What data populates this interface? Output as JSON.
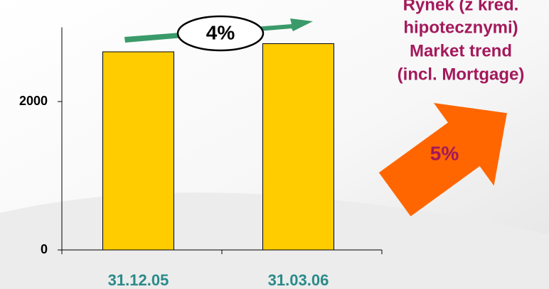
{
  "chart_data": {
    "type": "bar",
    "categories": [
      "31.12.05",
      "31.03.06"
    ],
    "values": [
      2670,
      2780
    ],
    "color": "#ffcc00",
    "ylim": [
      0,
      3000
    ],
    "yticks": [
      0,
      2000
    ],
    "grid": false,
    "annotations": {
      "bar_growth": "4%",
      "market_growth": "5%",
      "market_label": [
        "Rynek (z kred.",
        "hipotecznymi)",
        "Market trend",
        "(incl. Mortgage)"
      ]
    }
  }
}
